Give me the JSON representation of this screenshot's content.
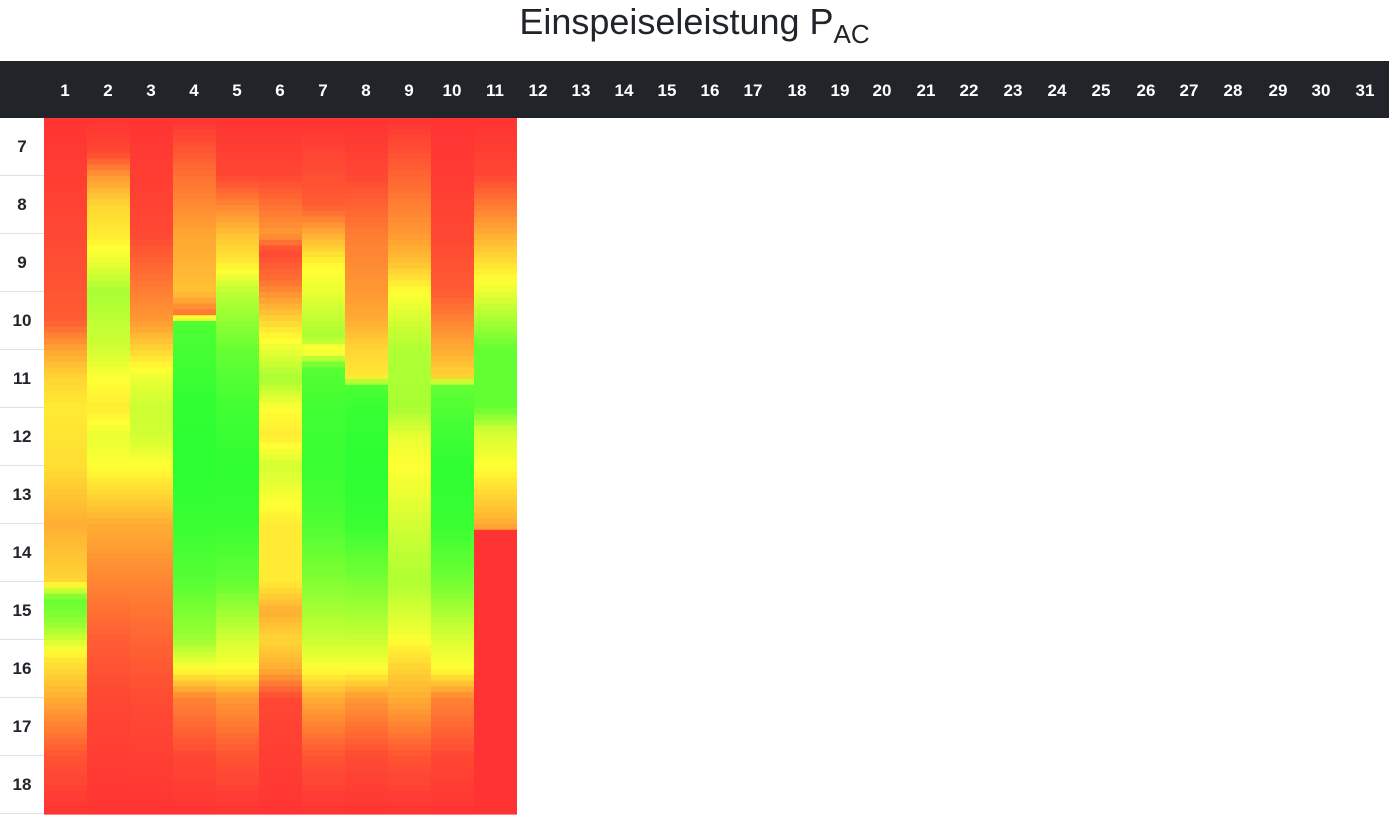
{
  "title": {
    "main": "Einspeiseleistung P",
    "subscript": "AC"
  },
  "chart_data": {
    "type": "heatmap",
    "x_label": "",
    "y_label": "",
    "columns": [
      "1",
      "2",
      "3",
      "4",
      "5",
      "6",
      "7",
      "8",
      "9",
      "10",
      "11",
      "12",
      "13",
      "14",
      "15",
      "16",
      "17",
      "18",
      "19",
      "20",
      "21",
      "22",
      "23",
      "24",
      "25",
      "26",
      "27",
      "28",
      "29",
      "30",
      "31"
    ],
    "rows": [
      "7",
      "8",
      "9",
      "10",
      "11",
      "12",
      "13",
      "14",
      "15",
      "16",
      "17",
      "18"
    ],
    "hour_range": [
      7,
      19
    ],
    "color_scale": {
      "low": "#ff3333",
      "mid": "#ffff33",
      "high": "#22ff33"
    },
    "value_range": [
      0,
      1
    ],
    "days_with_data": 11,
    "day_profiles": [
      [
        [
          7,
          0.0
        ],
        [
          9,
          0.05
        ],
        [
          10.5,
          0.1
        ],
        [
          11,
          0.28
        ],
        [
          11.5,
          0.4
        ],
        [
          12,
          0.45
        ],
        [
          13,
          0.42
        ],
        [
          14,
          0.3
        ],
        [
          15,
          0.4
        ],
        [
          15.3,
          0.85
        ],
        [
          15.7,
          0.75
        ],
        [
          16.3,
          0.45
        ],
        [
          17,
          0.3
        ],
        [
          18,
          0.08
        ],
        [
          19,
          0.0
        ]
      ],
      [
        [
          7,
          0.0
        ],
        [
          7.6,
          0.05
        ],
        [
          8,
          0.25
        ],
        [
          8.5,
          0.4
        ],
        [
          9,
          0.45
        ],
        [
          9.5,
          0.55
        ],
        [
          10,
          0.7
        ],
        [
          11,
          0.6
        ],
        [
          11.5,
          0.5
        ],
        [
          12,
          0.45
        ],
        [
          12.5,
          0.55
        ],
        [
          13,
          0.5
        ],
        [
          13.5,
          0.4
        ],
        [
          14,
          0.3
        ],
        [
          15,
          0.2
        ],
        [
          16,
          0.1
        ],
        [
          17,
          0.05
        ],
        [
          19,
          0.0
        ]
      ],
      [
        [
          7,
          0.0
        ],
        [
          9,
          0.05
        ],
        [
          9.5,
          0.12
        ],
        [
          10.5,
          0.25
        ],
        [
          11,
          0.4
        ],
        [
          11.5,
          0.55
        ],
        [
          12,
          0.62
        ],
        [
          12.5,
          0.6
        ],
        [
          13,
          0.5
        ],
        [
          14,
          0.3
        ],
        [
          15,
          0.2
        ],
        [
          16,
          0.12
        ],
        [
          17,
          0.06
        ],
        [
          19,
          0.0
        ]
      ],
      [
        [
          7,
          0.0
        ],
        [
          8,
          0.15
        ],
        [
          9,
          0.28
        ],
        [
          10,
          0.35
        ],
        [
          10.4,
          0.15
        ],
        [
          10.5,
          0.9
        ],
        [
          12,
          0.97
        ],
        [
          13,
          0.98
        ],
        [
          14,
          0.95
        ],
        [
          15,
          0.88
        ],
        [
          16,
          0.72
        ],
        [
          16.5,
          0.5
        ],
        [
          17,
          0.2
        ],
        [
          18,
          0.05
        ],
        [
          19,
          0.0
        ]
      ],
      [
        [
          7,
          0.0
        ],
        [
          8,
          0.05
        ],
        [
          8.5,
          0.2
        ],
        [
          9,
          0.35
        ],
        [
          9.5,
          0.45
        ],
        [
          10,
          0.65
        ],
        [
          11,
          0.85
        ],
        [
          12,
          0.93
        ],
        [
          13,
          0.97
        ],
        [
          14,
          0.95
        ],
        [
          15,
          0.85
        ],
        [
          16,
          0.6
        ],
        [
          16.5,
          0.5
        ],
        [
          17,
          0.25
        ],
        [
          18,
          0.08
        ],
        [
          19,
          0.0
        ]
      ],
      [
        [
          7,
          0.0
        ],
        [
          8,
          0.05
        ],
        [
          9,
          0.25
        ],
        [
          9.3,
          0.05
        ],
        [
          9.8,
          0.15
        ],
        [
          10.5,
          0.4
        ],
        [
          11,
          0.55
        ],
        [
          11.5,
          0.7
        ],
        [
          12,
          0.5
        ],
        [
          12.5,
          0.45
        ],
        [
          13,
          0.6
        ],
        [
          14,
          0.45
        ],
        [
          15,
          0.45
        ],
        [
          15.5,
          0.3
        ],
        [
          16,
          0.4
        ],
        [
          16.5,
          0.3
        ],
        [
          17,
          0.05
        ],
        [
          19,
          0.0
        ]
      ],
      [
        [
          7,
          0.0
        ],
        [
          8.5,
          0.1
        ],
        [
          9,
          0.3
        ],
        [
          9.5,
          0.48
        ],
        [
          10,
          0.55
        ],
        [
          10.8,
          0.7
        ],
        [
          11,
          0.45
        ],
        [
          11.3,
          0.88
        ],
        [
          12,
          0.93
        ],
        [
          13,
          0.95
        ],
        [
          14,
          0.9
        ],
        [
          15,
          0.78
        ],
        [
          16,
          0.62
        ],
        [
          16.5,
          0.5
        ],
        [
          17,
          0.3
        ],
        [
          18,
          0.08
        ],
        [
          19,
          0.0
        ]
      ],
      [
        [
          7,
          0.0
        ],
        [
          8,
          0.05
        ],
        [
          9,
          0.18
        ],
        [
          10,
          0.25
        ],
        [
          10.5,
          0.3
        ],
        [
          11,
          0.4
        ],
        [
          11.5,
          0.45
        ],
        [
          11.6,
          0.9
        ],
        [
          12,
          0.95
        ],
        [
          13,
          0.98
        ],
        [
          14,
          0.95
        ],
        [
          15,
          0.8
        ],
        [
          16,
          0.62
        ],
        [
          16.5,
          0.5
        ],
        [
          17,
          0.25
        ],
        [
          18,
          0.06
        ],
        [
          19,
          0.0
        ]
      ],
      [
        [
          7,
          0.0
        ],
        [
          8,
          0.12
        ],
        [
          9,
          0.25
        ],
        [
          9.5,
          0.35
        ],
        [
          10,
          0.5
        ],
        [
          10.5,
          0.6
        ],
        [
          11,
          0.68
        ],
        [
          12,
          0.7
        ],
        [
          12.5,
          0.55
        ],
        [
          13,
          0.5
        ],
        [
          13.5,
          0.55
        ],
        [
          14,
          0.6
        ],
        [
          14.5,
          0.65
        ],
        [
          15,
          0.68
        ],
        [
          15.8,
          0.55
        ],
        [
          16.2,
          0.45
        ],
        [
          17,
          0.3
        ],
        [
          18,
          0.08
        ],
        [
          19,
          0.0
        ]
      ],
      [
        [
          7,
          0.0
        ],
        [
          8,
          0.02
        ],
        [
          9,
          0.05
        ],
        [
          10,
          0.1
        ],
        [
          10.5,
          0.2
        ],
        [
          11,
          0.3
        ],
        [
          11.5,
          0.4
        ],
        [
          11.6,
          0.85
        ],
        [
          12,
          0.9
        ],
        [
          13,
          0.97
        ],
        [
          14,
          0.95
        ],
        [
          15,
          0.82
        ],
        [
          16,
          0.58
        ],
        [
          16.5,
          0.5
        ],
        [
          17,
          0.2
        ],
        [
          18,
          0.05
        ],
        [
          19,
          0.0
        ]
      ],
      [
        [
          7,
          0.0
        ],
        [
          8,
          0.05
        ],
        [
          9,
          0.3
        ],
        [
          10,
          0.55
        ],
        [
          10.5,
          0.7
        ],
        [
          11,
          0.85
        ],
        [
          12,
          0.85
        ],
        [
          12.4,
          0.6
        ],
        [
          13,
          0.5
        ],
        [
          13.5,
          0.4
        ],
        [
          14,
          0.3
        ],
        [
          14.1,
          0.25
        ],
        [
          14.15,
          0.0
        ],
        [
          19,
          0.0
        ]
      ]
    ]
  }
}
